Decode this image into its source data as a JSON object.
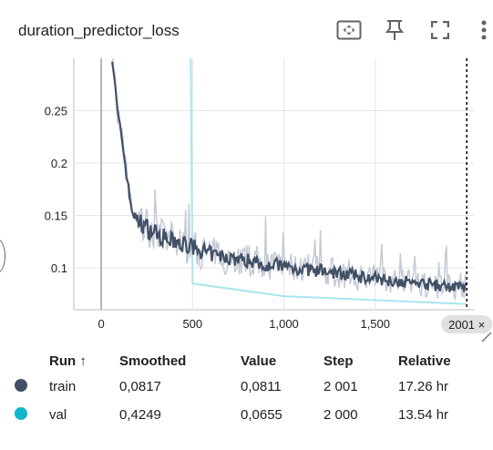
{
  "card": {
    "title": "duration_predictor_loss"
  },
  "toolbar": {
    "icons": [
      "fit-domain-icon",
      "pin-icon",
      "fullscreen-icon",
      "more-vert-icon"
    ]
  },
  "legend": {
    "headers": {
      "run": "Run",
      "sort_indicator": "↑",
      "smoothed": "Smoothed",
      "value": "Value",
      "step": "Step",
      "relative": "Relative"
    },
    "rows": [
      {
        "name": "train",
        "color": "#425066",
        "smoothed": "0,0817",
        "value": "0,0811",
        "step": "2 001",
        "relative": "17.26 hr"
      },
      {
        "name": "val",
        "color": "#12b5cb",
        "smoothed": "0,4249",
        "value": "0,0655",
        "step": "2 000",
        "relative": "13.54 hr"
      }
    ]
  },
  "chart_data": {
    "type": "line",
    "xlim": [
      -150,
      2040
    ],
    "ylim": [
      0.06,
      0.3
    ],
    "x_ticks": [
      0,
      500,
      1000,
      1500
    ],
    "x_tick_labels": [
      "0",
      "500",
      "1,000",
      "1,500"
    ],
    "y_ticks": [
      0.1,
      0.15,
      0.2,
      0.25
    ],
    "y_tick_labels": [
      "0.1",
      "0.15",
      "0.2",
      "0.25"
    ],
    "grid": true,
    "cursor": {
      "step": 2001,
      "label": "2001 ×"
    },
    "series": [
      {
        "name": "train",
        "color": "#425066",
        "raw_color": "#c5cad6",
        "smoothed_points": [
          [
            60,
            0.3
          ],
          [
            70,
            0.285
          ],
          [
            80,
            0.265
          ],
          [
            90,
            0.248
          ],
          [
            100,
            0.235
          ],
          [
            110,
            0.228
          ],
          [
            120,
            0.215
          ],
          [
            130,
            0.2
          ],
          [
            140,
            0.188
          ],
          [
            150,
            0.175
          ],
          [
            160,
            0.163
          ],
          [
            170,
            0.155
          ],
          [
            180,
            0.15
          ],
          [
            200,
            0.145
          ],
          [
            220,
            0.143
          ],
          [
            250,
            0.138
          ],
          [
            280,
            0.135
          ],
          [
            300,
            0.132
          ],
          [
            330,
            0.13
          ],
          [
            360,
            0.127
          ],
          [
            400,
            0.125
          ],
          [
            450,
            0.122
          ],
          [
            500,
            0.12
          ],
          [
            550,
            0.116
          ],
          [
            600,
            0.113
          ],
          [
            650,
            0.111
          ],
          [
            700,
            0.11
          ],
          [
            750,
            0.108
          ],
          [
            800,
            0.107
          ],
          [
            850,
            0.106
          ],
          [
            900,
            0.104
          ],
          [
            950,
            0.103
          ],
          [
            1000,
            0.101
          ],
          [
            1050,
            0.1
          ],
          [
            1100,
            0.099
          ],
          [
            1150,
            0.098
          ],
          [
            1200,
            0.097
          ],
          [
            1250,
            0.096
          ],
          [
            1300,
            0.095
          ],
          [
            1350,
            0.094
          ],
          [
            1400,
            0.092
          ],
          [
            1450,
            0.091
          ],
          [
            1500,
            0.09
          ],
          [
            1550,
            0.089
          ],
          [
            1600,
            0.088
          ],
          [
            1650,
            0.087
          ],
          [
            1700,
            0.086
          ],
          [
            1750,
            0.085
          ],
          [
            1800,
            0.084
          ],
          [
            1850,
            0.083
          ],
          [
            1900,
            0.082
          ],
          [
            1950,
            0.081
          ],
          [
            2001,
            0.0817
          ]
        ]
      },
      {
        "name": "val",
        "color": "#a7e6ef",
        "points": [
          [
            490,
            0.3
          ],
          [
            500,
            0.085
          ],
          [
            1000,
            0.073
          ],
          [
            2000,
            0.0655
          ]
        ]
      }
    ]
  }
}
